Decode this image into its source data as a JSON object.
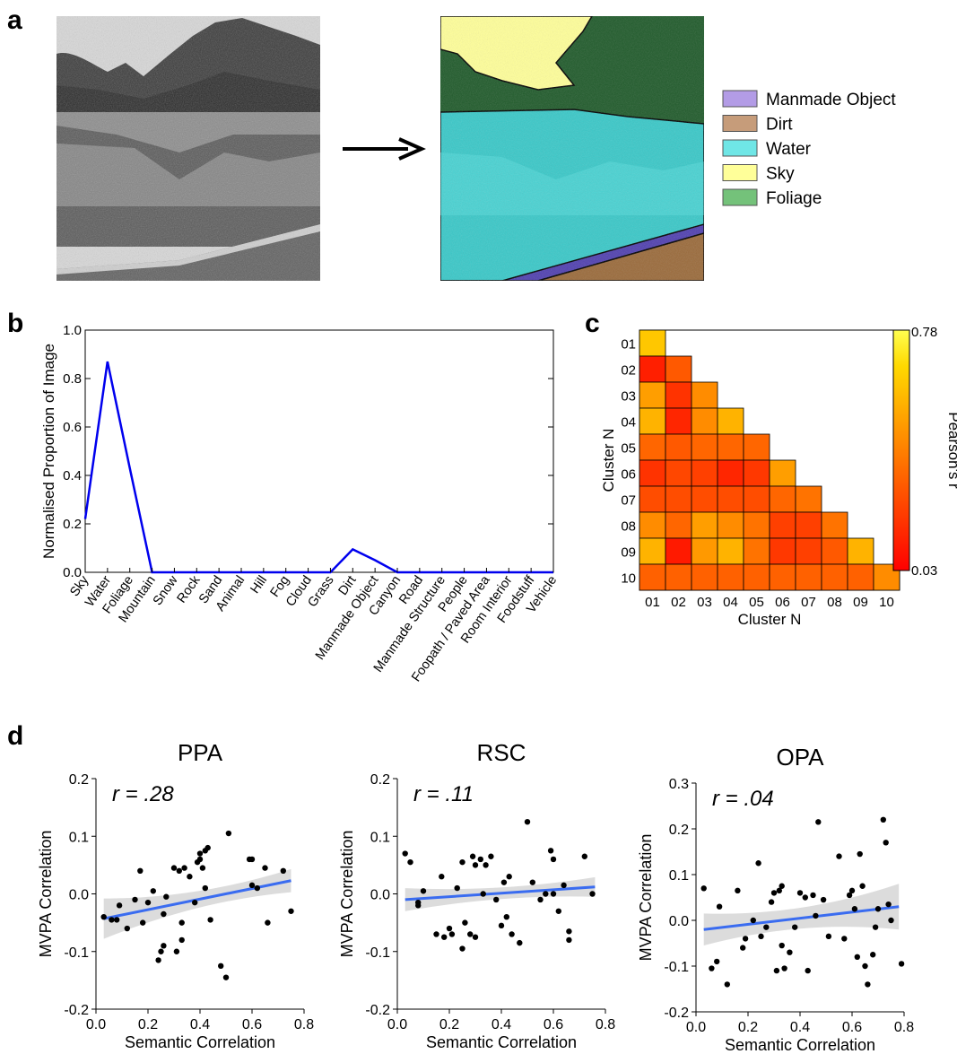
{
  "panel_labels": {
    "a": "a",
    "b": "b",
    "c": "c",
    "d": "d"
  },
  "segmentation_legend": [
    {
      "label": "Manmade Object",
      "color": "#b39ce6"
    },
    {
      "label": "Dirt",
      "color": "#c69c7a"
    },
    {
      "label": "Water",
      "color": "#6fe6e6"
    },
    {
      "label": "Sky",
      "color": "#ffff99"
    },
    {
      "label": "Foliage",
      "color": "#74c27a"
    }
  ],
  "chart_data": [
    {
      "type": "line",
      "panel": "b",
      "ylabel": "Normalised Proportion of Image",
      "xlabel": "",
      "categories": [
        "Sky",
        "Water",
        "Foliage",
        "Mountain",
        "Snow",
        "Rock",
        "Sand",
        "Animal",
        "Hill",
        "Fog",
        "Cloud",
        "Grass",
        "Dirt",
        "Manmade Object",
        "Canyon",
        "Road",
        "Manmade Structure",
        "People",
        "Foopath / Paved Area",
        "Room Interior",
        "Foodstuff",
        "Vehicle"
      ],
      "values": [
        0.22,
        0.87,
        0.43,
        0.0,
        0.0,
        0.0,
        0.0,
        0.0,
        0.0,
        0.0,
        0.0,
        0.0,
        0.095,
        0.05,
        0.0,
        0.0,
        0.0,
        0.0,
        0.0,
        0.0,
        0.0,
        0.0
      ],
      "ylim": [
        0,
        1.0
      ],
      "yticks": [
        "0.0",
        "0.2",
        "0.4",
        "0.6",
        "0.8",
        "1.0"
      ],
      "color": "#0000ee"
    },
    {
      "type": "heatmap",
      "panel": "c",
      "xlabel": "Cluster N",
      "ylabel": "Cluster N",
      "labels": [
        "01",
        "02",
        "03",
        "04",
        "05",
        "06",
        "07",
        "08",
        "09",
        "10"
      ],
      "colorbar": {
        "label": "Pearson's r",
        "max": "0.78",
        "min": "0.03"
      },
      "values": [
        [
          0.78
        ],
        [
          0.12,
          0.35
        ],
        [
          0.62,
          0.2,
          0.55
        ],
        [
          0.7,
          0.15,
          0.55,
          0.7
        ],
        [
          0.4,
          0.35,
          0.4,
          0.4,
          0.4
        ],
        [
          0.2,
          0.28,
          0.25,
          0.15,
          0.22,
          0.62
        ],
        [
          0.3,
          0.3,
          0.3,
          0.3,
          0.3,
          0.4,
          0.45
        ],
        [
          0.55,
          0.4,
          0.62,
          0.55,
          0.45,
          0.25,
          0.25,
          0.45
        ],
        [
          0.7,
          0.1,
          0.6,
          0.7,
          0.45,
          0.22,
          0.25,
          0.35,
          0.7
        ],
        [
          0.38,
          0.38,
          0.38,
          0.38,
          0.38,
          0.38,
          0.38,
          0.38,
          0.38,
          0.55
        ]
      ]
    },
    {
      "type": "scatter",
      "panel": "d",
      "title": "PPA",
      "annotation": "r = .28",
      "xlabel": "Semantic Correlation",
      "ylabel": "MVPA Correlation",
      "xlim": [
        0,
        0.8
      ],
      "ylim": [
        -0.2,
        0.2
      ],
      "xticks": [
        "0.0",
        "0.2",
        "0.4",
        "0.6",
        "0.8"
      ],
      "yticks": [
        "0.2",
        "0.1",
        "0.0",
        "-0.1",
        "-0.2"
      ],
      "fit": {
        "x": [
          0.03,
          0.75
        ],
        "y": [
          -0.043,
          0.023
        ],
        "band": [
          0.035,
          0.02
        ]
      },
      "points": [
        [
          0.03,
          -0.04
        ],
        [
          0.06,
          -0.045
        ],
        [
          0.08,
          -0.045
        ],
        [
          0.09,
          -0.02
        ],
        [
          0.12,
          -0.06
        ],
        [
          0.15,
          -0.01
        ],
        [
          0.17,
          0.04
        ],
        [
          0.18,
          -0.05
        ],
        [
          0.2,
          -0.015
        ],
        [
          0.22,
          0.005
        ],
        [
          0.24,
          -0.115
        ],
        [
          0.25,
          -0.1
        ],
        [
          0.26,
          -0.09
        ],
        [
          0.26,
          -0.035
        ],
        [
          0.27,
          -0.005
        ],
        [
          0.3,
          0.045
        ],
        [
          0.31,
          -0.1
        ],
        [
          0.32,
          0.04
        ],
        [
          0.33,
          -0.08
        ],
        [
          0.33,
          -0.05
        ],
        [
          0.34,
          0.045
        ],
        [
          0.36,
          0.03
        ],
        [
          0.38,
          -0.015
        ],
        [
          0.39,
          0.055
        ],
        [
          0.4,
          0.06
        ],
        [
          0.4,
          0.07
        ],
        [
          0.41,
          0.045
        ],
        [
          0.42,
          0.075
        ],
        [
          0.42,
          0.01
        ],
        [
          0.43,
          0.08
        ],
        [
          0.44,
          -0.045
        ],
        [
          0.48,
          -0.125
        ],
        [
          0.5,
          -0.145
        ],
        [
          0.51,
          0.105
        ],
        [
          0.59,
          0.06
        ],
        [
          0.6,
          0.06
        ],
        [
          0.6,
          0.015
        ],
        [
          0.62,
          0.01
        ],
        [
          0.65,
          0.045
        ],
        [
          0.66,
          -0.05
        ],
        [
          0.72,
          0.04
        ],
        [
          0.75,
          -0.03
        ]
      ]
    },
    {
      "type": "scatter",
      "panel": "d",
      "title": "RSC",
      "annotation": "r = .11",
      "xlabel": "Semantic Correlation",
      "ylabel": "MVPA Correlation",
      "xlim": [
        0,
        0.8
      ],
      "ylim": [
        -0.2,
        0.2
      ],
      "xticks": [
        "0.0",
        "0.2",
        "0.4",
        "0.6",
        "0.8"
      ],
      "yticks": [
        "0.2",
        "0.1",
        "0.0",
        "-0.1",
        "-0.2"
      ],
      "fit": {
        "x": [
          0.03,
          0.76
        ],
        "y": [
          -0.01,
          0.012
        ],
        "band": [
          0.02,
          0.017
        ]
      },
      "points": [
        [
          0.03,
          0.07
        ],
        [
          0.05,
          0.055
        ],
        [
          0.08,
          -0.015
        ],
        [
          0.08,
          -0.02
        ],
        [
          0.1,
          0.005
        ],
        [
          0.15,
          -0.07
        ],
        [
          0.17,
          0.03
        ],
        [
          0.18,
          -0.075
        ],
        [
          0.2,
          -0.06
        ],
        [
          0.21,
          -0.07
        ],
        [
          0.23,
          0.01
        ],
        [
          0.25,
          -0.095
        ],
        [
          0.25,
          0.055
        ],
        [
          0.26,
          -0.05
        ],
        [
          0.28,
          -0.07
        ],
        [
          0.29,
          0.065
        ],
        [
          0.3,
          0.05
        ],
        [
          0.3,
          -0.075
        ],
        [
          0.32,
          0.06
        ],
        [
          0.33,
          0.0
        ],
        [
          0.34,
          0.05
        ],
        [
          0.36,
          0.065
        ],
        [
          0.38,
          -0.01
        ],
        [
          0.4,
          -0.055
        ],
        [
          0.41,
          0.02
        ],
        [
          0.42,
          -0.04
        ],
        [
          0.43,
          0.03
        ],
        [
          0.44,
          -0.07
        ],
        [
          0.47,
          -0.085
        ],
        [
          0.5,
          0.125
        ],
        [
          0.52,
          0.02
        ],
        [
          0.55,
          -0.01
        ],
        [
          0.57,
          0.0
        ],
        [
          0.59,
          0.075
        ],
        [
          0.6,
          0.06
        ],
        [
          0.6,
          0.0
        ],
        [
          0.62,
          -0.03
        ],
        [
          0.64,
          0.015
        ],
        [
          0.66,
          -0.08
        ],
        [
          0.66,
          -0.065
        ],
        [
          0.72,
          0.065
        ],
        [
          0.75,
          0.0
        ]
      ]
    },
    {
      "type": "scatter",
      "panel": "d",
      "title": "OPA",
      "annotation": "r = .04",
      "xlabel": "Semantic Correlation",
      "ylabel": "MVPA Correlation",
      "xlim": [
        0,
        0.8
      ],
      "ylim": [
        -0.2,
        0.3
      ],
      "xticks": [
        "0.0",
        "0.2",
        "0.4",
        "0.6",
        "0.8"
      ],
      "yticks": [
        "0.3",
        "0.2",
        "0.1",
        "0.0",
        "-0.1",
        "-0.2"
      ],
      "fit": {
        "x": [
          0.03,
          0.78
        ],
        "y": [
          -0.02,
          0.03
        ],
        "band": [
          0.035,
          0.05
        ]
      },
      "points": [
        [
          0.03,
          0.07
        ],
        [
          0.06,
          -0.105
        ],
        [
          0.08,
          -0.09
        ],
        [
          0.09,
          0.03
        ],
        [
          0.12,
          -0.14
        ],
        [
          0.16,
          0.065
        ],
        [
          0.18,
          -0.06
        ],
        [
          0.19,
          -0.04
        ],
        [
          0.22,
          0.0
        ],
        [
          0.24,
          0.125
        ],
        [
          0.25,
          -0.035
        ],
        [
          0.27,
          -0.015
        ],
        [
          0.29,
          0.04
        ],
        [
          0.3,
          0.06
        ],
        [
          0.31,
          -0.11
        ],
        [
          0.32,
          0.065
        ],
        [
          0.33,
          0.075
        ],
        [
          0.33,
          -0.055
        ],
        [
          0.34,
          -0.105
        ],
        [
          0.36,
          -0.07
        ],
        [
          0.38,
          -0.015
        ],
        [
          0.4,
          0.06
        ],
        [
          0.42,
          0.05
        ],
        [
          0.43,
          -0.11
        ],
        [
          0.45,
          0.055
        ],
        [
          0.46,
          0.01
        ],
        [
          0.47,
          0.215
        ],
        [
          0.49,
          0.045
        ],
        [
          0.51,
          -0.035
        ],
        [
          0.55,
          0.14
        ],
        [
          0.57,
          -0.04
        ],
        [
          0.59,
          0.055
        ],
        [
          0.6,
          0.065
        ],
        [
          0.61,
          0.025
        ],
        [
          0.62,
          -0.08
        ],
        [
          0.63,
          0.145
        ],
        [
          0.64,
          0.075
        ],
        [
          0.65,
          -0.1
        ],
        [
          0.66,
          -0.14
        ],
        [
          0.68,
          -0.075
        ],
        [
          0.69,
          -0.015
        ],
        [
          0.7,
          0.025
        ],
        [
          0.72,
          0.22
        ],
        [
          0.73,
          0.17
        ],
        [
          0.74,
          0.035
        ],
        [
          0.75,
          0.0
        ],
        [
          0.79,
          -0.095
        ]
      ]
    }
  ]
}
